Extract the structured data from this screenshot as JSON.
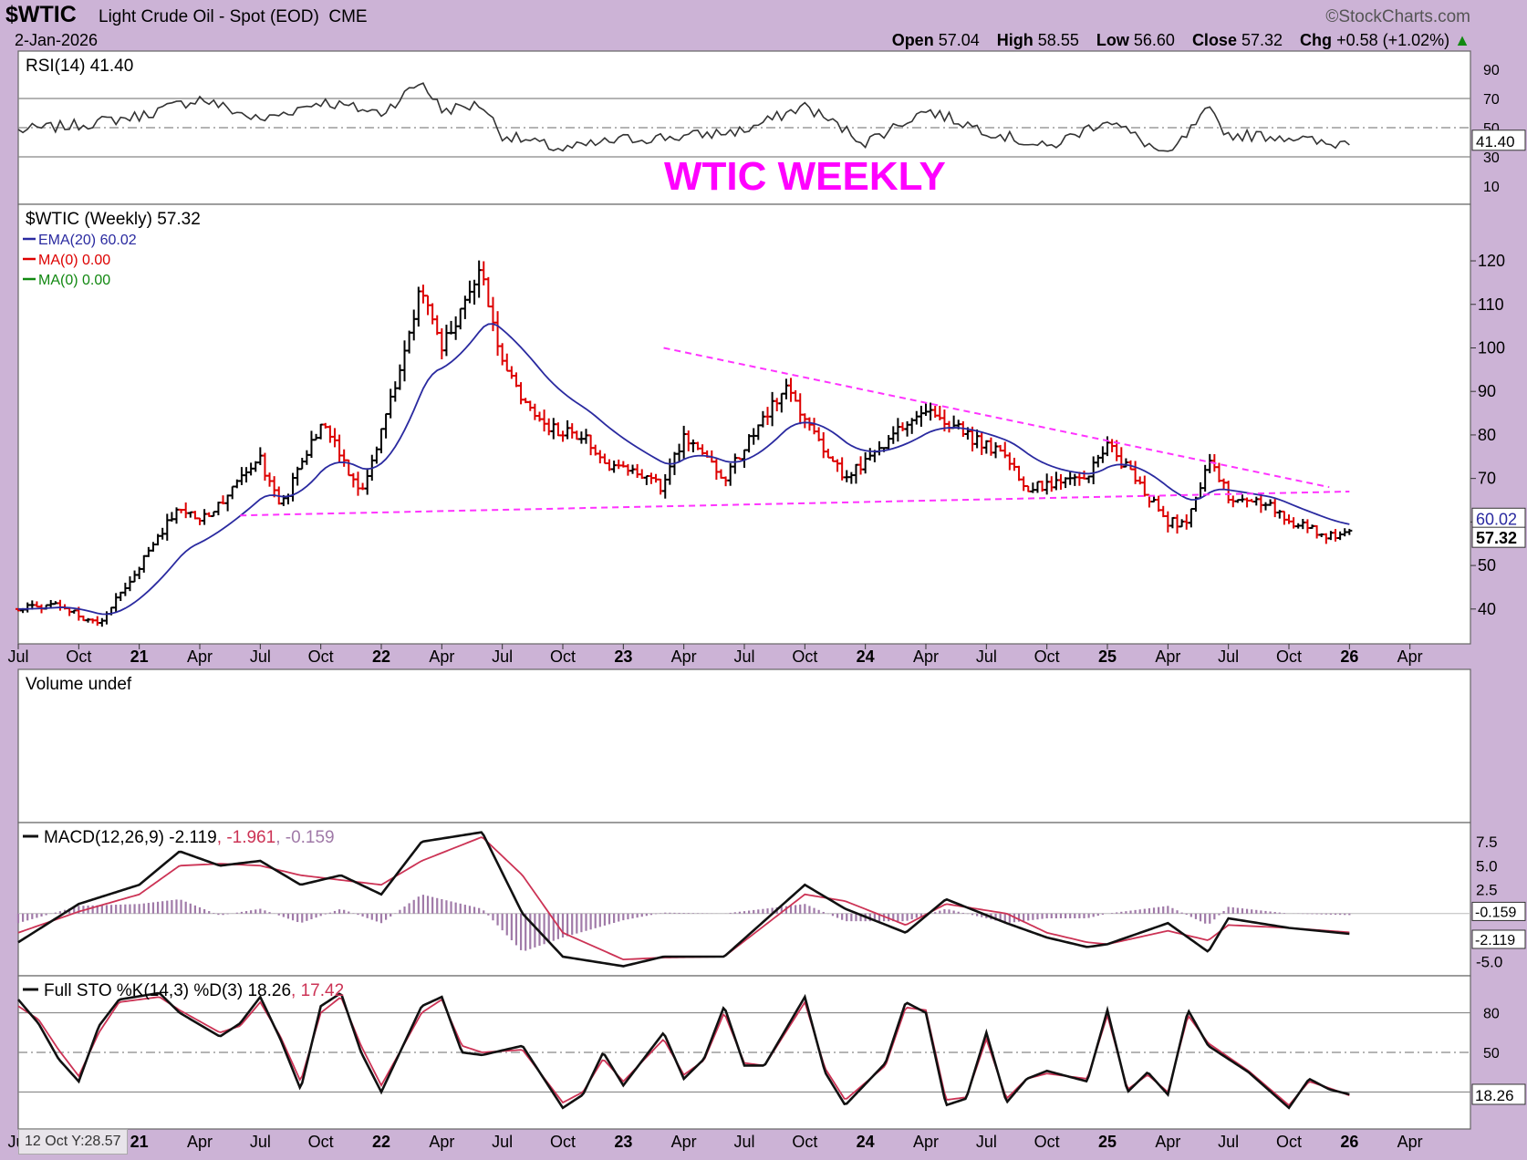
{
  "header": {
    "symbol": "$WTIC",
    "description": "Light Crude Oil - Spot (EOD)",
    "exchange": "CME",
    "watermark": "©StockCharts.com",
    "date": "2-Jan-2026",
    "open_label": "Open",
    "open": "57.04",
    "high_label": "High",
    "high": "58.55",
    "low_label": "Low",
    "low": "56.60",
    "close_label": "Close",
    "close": "57.32",
    "chg_label": "Chg",
    "chg": "+0.58 (+1.02%)"
  },
  "annotation": {
    "text": "WTIC WEEKLY",
    "color": "#ff00ff"
  },
  "crosshair_readout": "12 Oct Y:28.57",
  "colors": {
    "background": "#ccb3d6",
    "panel": "#ffffff",
    "up_bar": "#000000",
    "down_bar": "#dd0000",
    "ema": "#2a2aa0",
    "trendline": "#ff33ff",
    "macd": "#111111",
    "signal": "#cc3355",
    "histogram": "#a07aa8",
    "stoch_d": "#cc3355",
    "grid": "#999999"
  },
  "chart_data": [
    {
      "type": "line",
      "panel": "rsi",
      "legend": "RSI(14) 41.40",
      "ylim": [
        0,
        100
      ],
      "y_ticks": [
        "90",
        "70",
        "50",
        "30",
        "10"
      ],
      "reference_lines": [
        70,
        50,
        30
      ],
      "last_value_label": "41.40",
      "x": [
        "2020-07",
        "2020-10",
        "2021-01",
        "2021-04",
        "2021-07",
        "2021-10",
        "2022-01",
        "2022-03",
        "2022-04",
        "2022-06",
        "2022-07",
        "2022-10",
        "2023-01",
        "2023-04",
        "2023-07",
        "2023-10",
        "2024-01",
        "2024-04",
        "2024-07",
        "2024-10",
        "2025-01",
        "2025-04",
        "2025-06",
        "2025-07",
        "2025-10",
        "2025-12",
        "2026-01"
      ],
      "values": [
        48,
        52,
        58,
        70,
        55,
        68,
        60,
        82,
        62,
        66,
        45,
        35,
        42,
        44,
        48,
        65,
        40,
        62,
        48,
        36,
        56,
        30,
        62,
        45,
        44,
        38,
        41.4
      ]
    },
    {
      "type": "bar",
      "panel": "price",
      "style": "ohlc",
      "legend": {
        "series": "$WTIC (Weekly) 57.32",
        "ema": "EMA(20) 60.02",
        "ma1": "MA(0) 0.00",
        "ma2": "MA(0) 0.00"
      },
      "ylim": [
        32,
        133
      ],
      "y_ticks": [
        40,
        50,
        60,
        70,
        80,
        90,
        100,
        110,
        120
      ],
      "x_ticks": [
        "Jul",
        "Oct",
        "21",
        "Apr",
        "Jul",
        "Oct",
        "22",
        "Apr",
        "Jul",
        "Oct",
        "23",
        "Apr",
        "Jul",
        "Oct",
        "24",
        "Apr",
        "Jul",
        "Oct",
        "25",
        "Apr",
        "Jul",
        "Oct",
        "26",
        "Apr"
      ],
      "last_value_labels": {
        "ema": "60.02",
        "close": "57.32"
      },
      "anchors": {
        "x": [
          "2020-07",
          "2020-09",
          "2020-11",
          "2021-01",
          "2021-03",
          "2021-04",
          "2021-07",
          "2021-08",
          "2021-10",
          "2021-12",
          "2022-01",
          "2022-03",
          "2022-04",
          "2022-06",
          "2022-07",
          "2022-09",
          "2022-11",
          "2022-12",
          "2023-03",
          "2023-04",
          "2023-06",
          "2023-09",
          "2023-12",
          "2024-01",
          "2024-04",
          "2024-06",
          "2024-08",
          "2024-09",
          "2024-12",
          "2025-01",
          "2025-04",
          "2025-05",
          "2025-06",
          "2025-07",
          "2025-09",
          "2025-10",
          "2025-12",
          "2026-01"
        ],
        "close": [
          40,
          41,
          36,
          50,
          64,
          60,
          74,
          63,
          83,
          67,
          80,
          115,
          100,
          118,
          96,
          82,
          80,
          74,
          68,
          80,
          70,
          91,
          70,
          74,
          86,
          80,
          75,
          68,
          70,
          78,
          60,
          60,
          74,
          66,
          64,
          60,
          57,
          57.32
        ]
      },
      "ema20_last": 60.02,
      "trendlines": [
        {
          "name": "descending resistance",
          "from": [
            "2023-03",
            100
          ],
          "to": [
            "2025-12",
            68
          ]
        },
        {
          "name": "rising support",
          "from": [
            "2021-06",
            61.5
          ],
          "to": [
            "2026-01",
            67
          ]
        }
      ]
    },
    {
      "type": "bar",
      "panel": "volume",
      "legend": "Volume undef",
      "values": []
    },
    {
      "type": "line",
      "panel": "macd",
      "legend": {
        "label": "MACD(12,26,9)",
        "macd": "-2.119",
        "signal": "-1.961",
        "hist": "-0.159"
      },
      "ylim": [
        -6.5,
        9.5
      ],
      "y_ticks": [
        "7.5",
        "5.0",
        "2.5",
        "-5.0"
      ],
      "last_value_labels": {
        "hist": "-0.159",
        "macd": "-2.119"
      },
      "x": [
        "2020-07",
        "2020-10",
        "2021-01",
        "2021-03",
        "2021-05",
        "2021-07",
        "2021-09",
        "2021-11",
        "2022-01",
        "2022-03",
        "2022-06",
        "2022-08",
        "2022-10",
        "2023-01",
        "2023-03",
        "2023-06",
        "2023-10",
        "2023-12",
        "2024-03",
        "2024-05",
        "2024-08",
        "2024-10",
        "2024-12",
        "2025-01",
        "2025-04",
        "2025-06",
        "2025-07",
        "2025-10",
        "2026-01"
      ],
      "series": [
        {
          "name": "MACD",
          "values": [
            -3,
            1,
            3,
            6.5,
            5,
            5.5,
            3,
            4,
            2,
            7.5,
            8.5,
            0,
            -4.5,
            -5.5,
            -4.5,
            -4.5,
            3,
            0.5,
            -2,
            1.5,
            -1,
            -2.5,
            -3.5,
            -3.2,
            -1,
            -4,
            -0.5,
            -1.5,
            -2.119
          ]
        },
        {
          "name": "Signal",
          "values": [
            -2,
            0.2,
            2,
            5,
            5.2,
            5,
            4,
            3.5,
            3,
            5.5,
            8,
            4,
            -2,
            -4.8,
            -4.6,
            -4.5,
            2,
            1.3,
            -1.2,
            1,
            0,
            -2,
            -3,
            -3.2,
            -1.8,
            -2.8,
            -1.2,
            -1.5,
            -1.961
          ]
        },
        {
          "name": "Histogram",
          "values": [
            -1,
            0.8,
            1,
            1.5,
            -0.2,
            0.5,
            -1,
            0.5,
            -1,
            2,
            0.5,
            -4,
            -2.5,
            -0.7,
            0.1,
            0,
            1,
            -0.8,
            -0.8,
            0.5,
            -1,
            -0.5,
            -0.5,
            0,
            0.8,
            -1.2,
            0.7,
            0,
            -0.159
          ]
        }
      ]
    },
    {
      "type": "line",
      "panel": "stochastic",
      "legend": {
        "label": "Full STO %K(14,3) %D(3)",
        "k": "18.26",
        "d": "17.42"
      },
      "ylim": [
        0,
        100
      ],
      "y_ticks": [
        "80",
        "50"
      ],
      "reference_lines": [
        80,
        50,
        20
      ],
      "last_value_label": "18.26",
      "x": [
        "2020-07",
        "2020-08",
        "2020-09",
        "2020-10",
        "2020-11",
        "2020-12",
        "2021-02",
        "2021-03",
        "2021-05",
        "2021-06",
        "2021-07",
        "2021-08",
        "2021-09",
        "2021-10",
        "2021-11",
        "2021-12",
        "2022-01",
        "2022-03",
        "2022-04",
        "2022-05",
        "2022-06",
        "2022-08",
        "2022-10",
        "2022-11",
        "2022-12",
        "2023-01",
        "2023-03",
        "2023-04",
        "2023-05",
        "2023-06",
        "2023-07",
        "2023-08",
        "2023-10",
        "2023-11",
        "2023-12",
        "2024-02",
        "2024-03",
        "2024-04",
        "2024-05",
        "2024-06",
        "2024-07",
        "2024-08",
        "2024-09",
        "2024-10",
        "2024-12",
        "2025-01",
        "2025-02",
        "2025-03",
        "2025-04",
        "2025-05",
        "2025-06",
        "2025-08",
        "2025-10",
        "2025-11",
        "2025-12",
        "2026-01"
      ],
      "series": [
        {
          "name": "%K",
          "values": [
            90,
            72,
            45,
            28,
            70,
            90,
            95,
            80,
            62,
            72,
            92,
            60,
            22,
            85,
            95,
            50,
            20,
            85,
            92,
            50,
            48,
            55,
            8,
            18,
            50,
            25,
            65,
            30,
            45,
            85,
            40,
            40,
            92,
            35,
            10,
            42,
            88,
            80,
            10,
            15,
            65,
            12,
            30,
            36,
            28,
            82,
            20,
            35,
            18,
            82,
            55,
            35,
            8,
            30,
            22,
            18.26
          ]
        },
        {
          "name": "%D",
          "values": [
            85,
            75,
            52,
            32,
            65,
            88,
            92,
            82,
            65,
            70,
            88,
            62,
            28,
            80,
            92,
            55,
            25,
            80,
            90,
            55,
            50,
            52,
            12,
            20,
            45,
            28,
            60,
            33,
            44,
            80,
            42,
            40,
            88,
            38,
            14,
            40,
            84,
            82,
            14,
            16,
            60,
            15,
            30,
            34,
            30,
            78,
            22,
            33,
            20,
            78,
            57,
            36,
            10,
            28,
            23,
            17.42
          ]
        }
      ]
    }
  ]
}
